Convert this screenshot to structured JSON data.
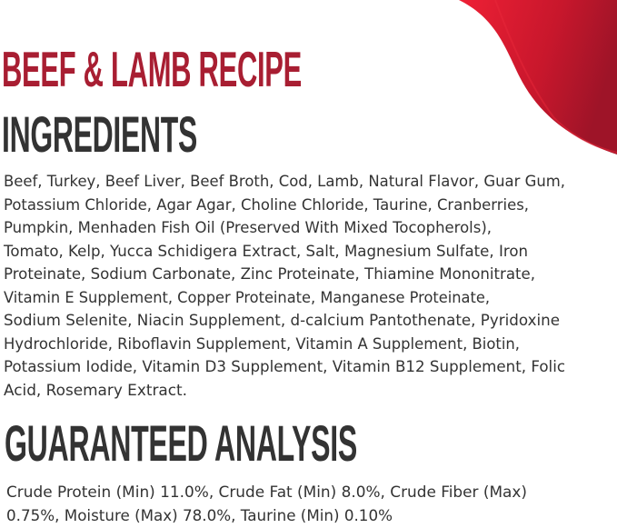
{
  "recipe_title": "BEEF & LAMB RECIPE",
  "ingredients_heading": "INGREDIENTS",
  "ingredients_lines": [
    "Beef, Turkey, Beef Liver, Beef Broth, Cod, Lamb, Natural Flavor, Guar Gum,",
    "Potassium Chloride, Agar Agar, Choline Chloride, Taurine, Cranberries,",
    "Pumpkin, Menhaden Fish Oil (Preserved With Mixed Tocopherols),",
    "Tomato, Kelp, Yucca Schidigera Extract, Salt, Magnesium Sulfate, Iron",
    "Proteinate, Sodium Carbonate, Zinc Proteinate, Thiamine Mononitrate,",
    "Vitamin E Supplement, Copper Proteinate, Manganese Proteinate,",
    "Sodium Selenite, Niacin Supplement, d-calcium Pantothenate, Pyridoxine",
    "Hydrochloride, Riboflavin Supplement, Vitamin A Supplement, Biotin,",
    "Potassium Iodide, Vitamin D3 Supplement, Vitamin B12 Supplement, Folic",
    "Acid, Rosemary Extract."
  ],
  "analysis_heading": "GUARANTEED ANALYSIS",
  "analysis_lines": [
    "Crude Protein (Min) 11.0%, Crude Fat (Min) 8.0%, Crude Fiber (Max)",
    "0.75%, Moisture (Max) 78.0%, Taurine (Min) 0.10%"
  ],
  "colors": {
    "brand_red": "#a81e32",
    "swoosh_red": "#e31b2f",
    "text": "#333333"
  }
}
